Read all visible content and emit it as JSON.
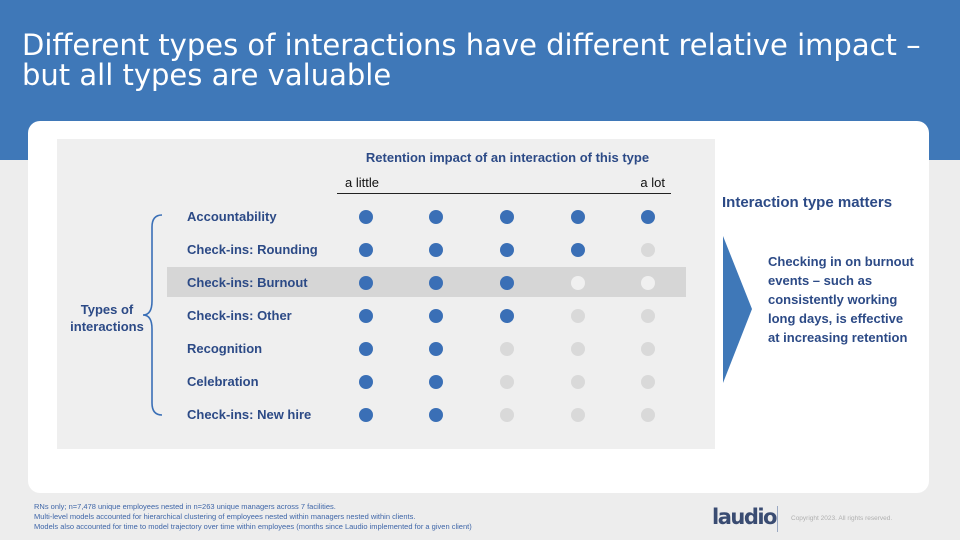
{
  "title": "Different types of interactions have different relative impact – but all types are valuable",
  "diagram": {
    "column_header": "Retention impact of an interaction of this type",
    "scale_low": "a little",
    "scale_high": "a lot",
    "group_label_line1": "Types of",
    "group_label_line2": "interactions",
    "highlighted_row": 2,
    "rows": [
      {
        "label": "Accountability",
        "filled": 5,
        "total": 5
      },
      {
        "label": "Check-ins: Rounding",
        "filled": 4,
        "total": 5
      },
      {
        "label": "Check-ins: Burnout",
        "filled": 3,
        "total": 5
      },
      {
        "label": "Check-ins: Other",
        "filled": 3,
        "total": 5
      },
      {
        "label": "Recognition",
        "filled": 2,
        "total": 5
      },
      {
        "label": "Celebration",
        "filled": 2,
        "total": 5
      },
      {
        "label": "Check-ins: New hire",
        "filled": 2,
        "total": 5
      }
    ],
    "colors": {
      "filled_dot": "#3a6fb6",
      "empty_dot": "#d9d9d9",
      "accent": "#2c4a86",
      "header_band": "#3f78b8"
    }
  },
  "side_panel": {
    "title": "Interaction type matters",
    "text": "Checking in on burnout events – such as consistently working long days, is effective at increasing retention"
  },
  "footnotes": [
    "RNs only; n=7,478 unique employees nested in n=263 unique managers across 7 facilities.",
    "Multi-level models accounted for hierarchical clustering of employees nested within managers nested within clients.",
    "Models also accounted for time to model trajectory over time within employees (months since Laudio implemented for a given client)"
  ],
  "logo_text": "laudio",
  "copyright": "Copyright 2023. All rights reserved."
}
